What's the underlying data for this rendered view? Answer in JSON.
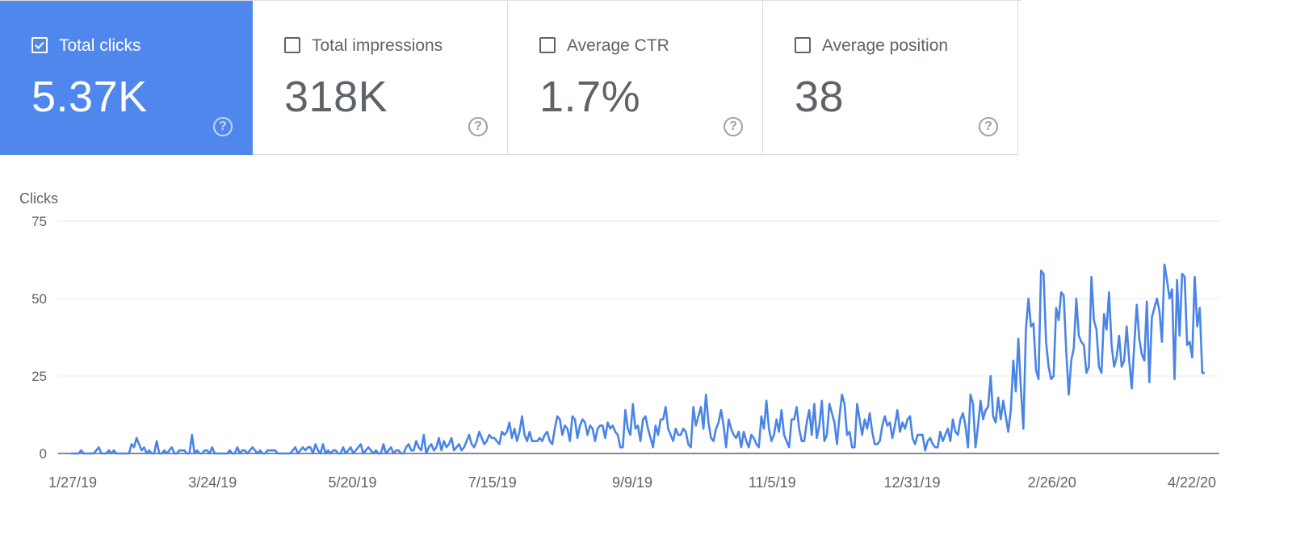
{
  "metrics": [
    {
      "label": "Total clicks",
      "value": "5.37K",
      "help": "?",
      "checked": true
    },
    {
      "label": "Total impressions",
      "value": "318K",
      "help": "?",
      "checked": false
    },
    {
      "label": "Average CTR",
      "value": "1.7%",
      "help": "?",
      "checked": false
    },
    {
      "label": "Average position",
      "value": "38",
      "help": "?",
      "checked": false
    }
  ],
  "colors": {
    "selected_card": "#5087ec",
    "line": "#4a84e6",
    "grid": "#e8eaed",
    "text": "#5f6368"
  },
  "chart_data": {
    "type": "line",
    "ylabel": "Clicks",
    "ylim": [
      0,
      75
    ],
    "yticks": [
      0,
      25,
      50,
      75
    ],
    "xticks": [
      "1/27/19",
      "3/24/19",
      "5/20/19",
      "7/15/19",
      "9/9/19",
      "11/5/19",
      "12/31/19",
      "2/26/20",
      "4/22/20"
    ],
    "x_start": "2019-01-27",
    "x_end": "2020-04-22",
    "series": [
      {
        "name": "Clicks",
        "values": [
          0,
          0,
          0,
          0,
          1,
          0,
          0,
          0,
          0,
          0,
          1,
          2,
          0,
          0,
          0,
          1,
          0,
          1,
          0,
          0,
          0,
          0,
          0,
          0,
          3,
          2,
          5,
          3,
          1,
          2,
          0,
          1,
          0,
          0,
          4,
          0,
          0,
          1,
          0,
          1,
          2,
          0,
          0,
          1,
          1,
          1,
          0,
          0,
          6,
          0,
          1,
          0,
          0,
          1,
          1,
          0,
          2,
          0,
          0,
          0,
          0,
          0,
          0,
          1,
          0,
          0,
          2,
          0,
          1,
          1,
          0,
          1,
          2,
          1,
          0,
          1,
          0,
          0,
          1,
          1,
          1,
          1,
          0,
          0,
          0,
          0,
          0,
          0,
          1,
          2,
          0,
          1,
          2,
          1,
          2,
          2,
          0,
          3,
          1,
          0,
          3,
          0,
          1,
          0,
          1,
          1,
          0,
          0,
          2,
          0,
          1,
          2,
          0,
          1,
          2,
          3,
          0,
          1,
          2,
          1,
          0,
          1,
          0,
          0,
          3,
          0,
          1,
          2,
          0,
          1,
          1,
          0,
          0,
          2,
          3,
          1,
          1,
          4,
          2,
          1,
          6,
          0,
          2,
          3,
          1,
          2,
          5,
          1,
          4,
          2,
          3,
          5,
          1,
          2,
          3,
          1,
          2,
          4,
          6,
          3,
          2,
          4,
          7,
          5,
          3,
          4,
          6,
          5,
          5,
          4,
          3,
          7,
          6,
          7,
          10,
          5,
          8,
          4,
          7,
          12,
          6,
          4,
          7,
          4,
          4,
          4,
          5,
          4,
          6,
          7,
          4,
          3,
          8,
          12,
          11,
          6,
          9,
          8,
          4,
          12,
          11,
          5,
          9,
          11,
          10,
          6,
          9,
          8,
          4,
          8,
          9,
          9,
          5,
          10,
          8,
          9,
          7,
          6,
          2,
          2,
          14,
          8,
          6,
          16,
          8,
          9,
          4,
          11,
          12,
          8,
          5,
          2,
          9,
          6,
          11,
          11,
          15,
          8,
          6,
          4,
          8,
          6,
          6,
          8,
          7,
          3,
          2,
          15,
          9,
          12,
          15,
          8,
          19,
          10,
          5,
          4,
          8,
          10,
          14,
          9,
          2,
          11,
          8,
          6,
          5,
          7,
          2,
          7,
          4,
          2,
          6,
          5,
          3,
          2,
          12,
          8,
          17,
          8,
          4,
          6,
          11,
          7,
          14,
          6,
          4,
          2,
          11,
          11,
          15,
          8,
          4,
          4,
          10,
          14,
          6,
          16,
          5,
          9,
          17,
          4,
          6,
          16,
          13,
          10,
          3,
          12,
          19,
          16,
          6,
          7,
          2,
          2,
          16,
          11,
          6,
          11,
          8,
          13,
          7,
          3,
          3,
          4,
          9,
          12,
          9,
          10,
          5,
          9,
          14,
          7,
          10,
          8,
          11,
          12,
          5,
          3,
          6,
          6,
          6,
          1,
          4,
          5,
          3,
          2,
          2,
          7,
          4,
          6,
          8,
          4,
          11,
          7,
          6,
          11,
          13,
          9,
          2,
          19,
          16,
          2,
          9,
          17,
          11,
          14,
          15,
          25,
          12,
          10,
          18,
          11,
          17,
          12,
          7,
          14,
          30,
          20,
          37,
          21,
          8,
          40,
          50,
          41,
          42,
          27,
          24,
          59,
          58,
          36,
          28,
          24,
          25,
          47,
          43,
          52,
          51,
          33,
          19,
          30,
          34,
          50,
          38,
          36,
          35,
          26,
          28,
          57,
          43,
          40,
          28,
          26,
          45,
          40,
          52,
          35,
          28,
          31,
          38,
          28,
          30,
          41,
          30,
          21,
          35,
          48,
          37,
          32,
          30,
          49,
          23,
          44,
          47,
          50,
          46,
          36,
          61,
          56,
          50,
          53,
          24,
          56,
          38,
          58,
          57,
          35,
          36,
          31,
          57,
          41,
          47,
          26,
          26
        ]
      }
    ]
  }
}
